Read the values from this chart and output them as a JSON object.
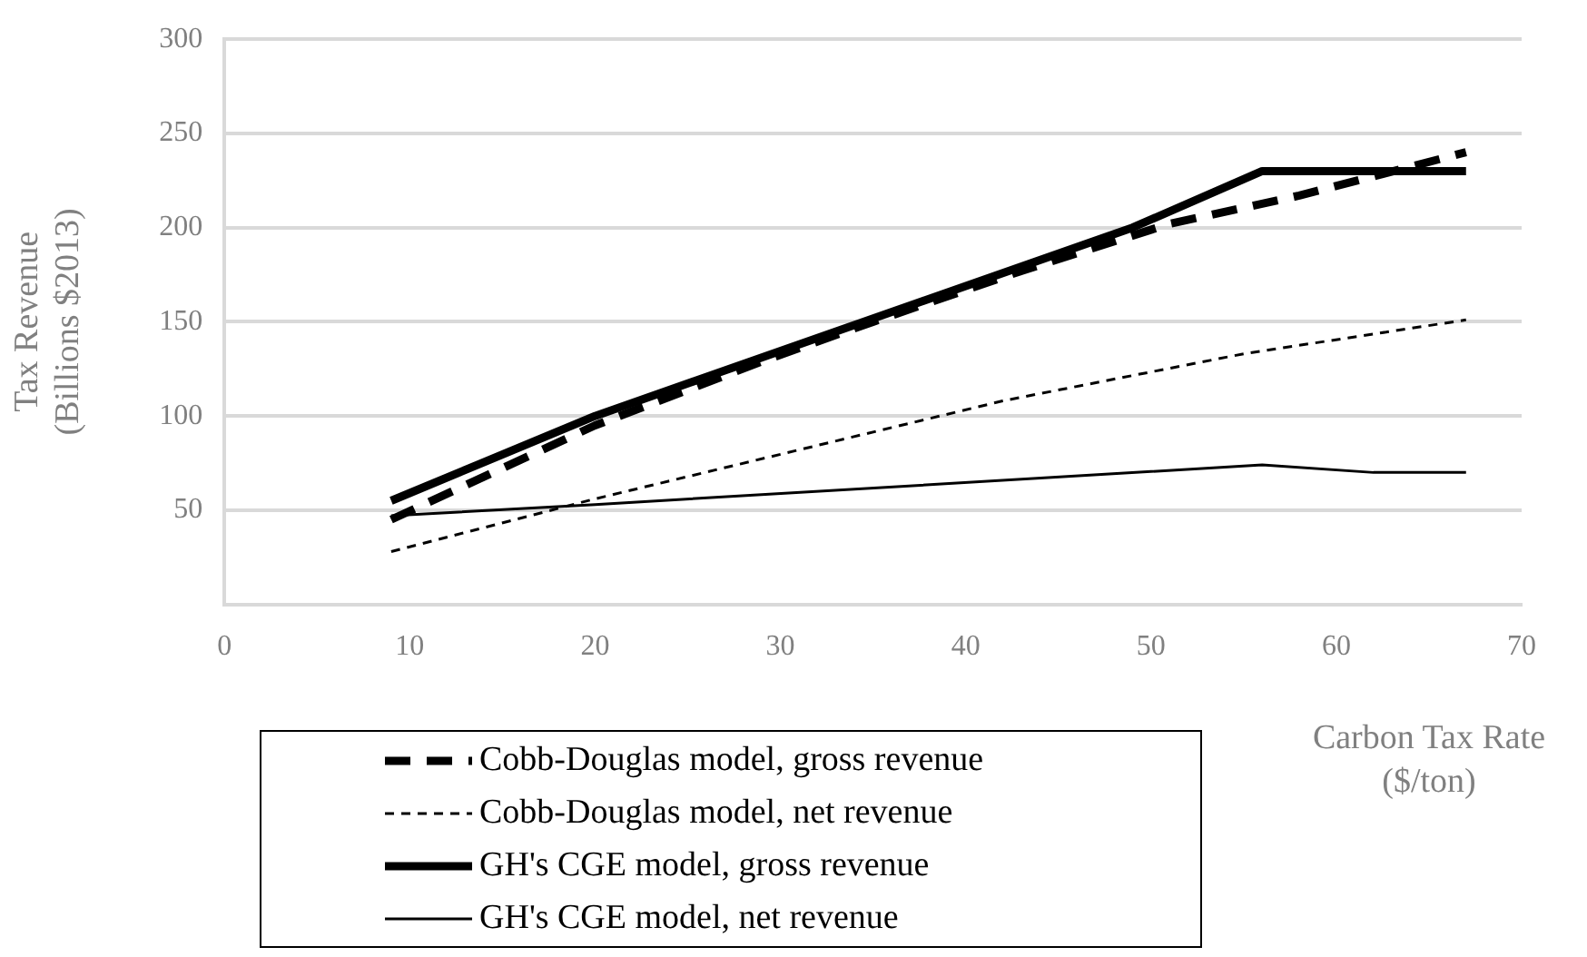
{
  "chart_data": {
    "type": "line",
    "xlabel": "Carbon Tax Rate ($/ton)",
    "ylabel": "Tax Revenue (Billions $2013)",
    "xlim": [
      0,
      70
    ],
    "xticks": [
      0,
      10,
      20,
      30,
      40,
      50,
      60,
      70
    ],
    "ylim": [
      0,
      300
    ],
    "yticks": [
      {
        "value": 0,
        "label": null
      },
      50,
      100,
      150,
      200,
      250,
      300
    ],
    "grid": "y",
    "legend": "bottom",
    "marker": "none",
    "series": [
      {
        "name": "Cobb-Douglas model, gross revenue",
        "color": "#000000",
        "line_style": "dashed",
        "x": [
          9,
          20,
          29,
          35,
          43,
          51,
          58,
          67
        ],
        "values": [
          45,
          95,
          129,
          150,
          177,
          202,
          217,
          240
        ]
      },
      {
        "name": "Cobb-Douglas model, net revenue",
        "color": "#000000",
        "line_style": "dashed",
        "x": [
          9,
          20,
          42,
          55,
          67
        ],
        "values": [
          28,
          56,
          108,
          133,
          151
        ]
      },
      {
        "name": "GH's CGE model, gross revenue",
        "color": "#000000",
        "line_style": "solid",
        "x": [
          9,
          20,
          49,
          56,
          67
        ],
        "values": [
          55,
          100,
          200,
          230,
          230
        ]
      },
      {
        "name": "GH's CGE model, net revenue",
        "color": "#000000",
        "line_style": "solid",
        "x": [
          9,
          20,
          56,
          62,
          67
        ],
        "values": [
          47,
          53,
          74,
          70,
          70
        ]
      }
    ]
  }
}
